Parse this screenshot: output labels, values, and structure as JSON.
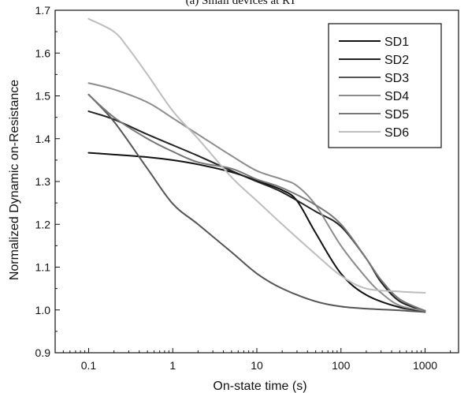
{
  "chart_data": {
    "type": "line",
    "title": "(a)    Small devices at RT",
    "xlabel": "On-state time (s)",
    "ylabel": "Normalized Dynamic on-Resistance",
    "xscale": "log",
    "xlim": [
      0.04,
      2500
    ],
    "ylim": [
      0.9,
      1.7
    ],
    "x_ticks": [
      0.1,
      1,
      10,
      100,
      1000
    ],
    "x_tick_labels": [
      "0.1",
      "1",
      "10",
      "100",
      "1000"
    ],
    "y_ticks": [
      0.9,
      1.0,
      1.1,
      1.2,
      1.3,
      1.4,
      1.5,
      1.6,
      1.7
    ],
    "y_tick_labels": [
      "0.9",
      "1.0",
      "1.1",
      "1.2",
      "1.3",
      "1.4",
      "1.5",
      "1.6",
      "1.7"
    ],
    "grid": false,
    "legend_position": "top-right",
    "series": [
      {
        "name": "SD1",
        "color": "#111111",
        "x": [
          0.1,
          0.2,
          0.5,
          1,
          2,
          5,
          10,
          20,
          30,
          50,
          100,
          200,
          500,
          1000
        ],
        "y": [
          1.367,
          1.363,
          1.357,
          1.35,
          1.34,
          1.322,
          1.302,
          1.28,
          1.255,
          1.18,
          1.085,
          1.035,
          1.006,
          0.998
        ]
      },
      {
        "name": "SD2",
        "color": "#222222",
        "x": [
          0.1,
          0.2,
          0.5,
          1,
          2,
          5,
          10,
          20,
          50,
          100,
          200,
          300,
          500,
          1000
        ],
        "y": [
          1.464,
          1.445,
          1.41,
          1.385,
          1.36,
          1.325,
          1.3,
          1.275,
          1.23,
          1.195,
          1.12,
          1.065,
          1.02,
          0.998
        ]
      },
      {
        "name": "SD3",
        "color": "#555555",
        "x": [
          0.1,
          0.2,
          0.5,
          1,
          2,
          5,
          10,
          20,
          50,
          100,
          200,
          500,
          1000
        ],
        "y": [
          1.503,
          1.44,
          1.33,
          1.248,
          1.2,
          1.135,
          1.085,
          1.05,
          1.02,
          1.008,
          1.003,
          0.999,
          0.995
        ]
      },
      {
        "name": "SD4",
        "color": "#8c8c8c",
        "x": [
          0.1,
          0.2,
          0.5,
          1,
          2,
          5,
          10,
          20,
          30,
          50,
          100,
          200,
          300,
          500,
          1000
        ],
        "y": [
          1.53,
          1.515,
          1.485,
          1.448,
          1.41,
          1.36,
          1.325,
          1.305,
          1.29,
          1.245,
          1.15,
          1.075,
          1.04,
          1.01,
          0.998
        ]
      },
      {
        "name": "SD5",
        "color": "#777777",
        "x": [
          0.1,
          0.2,
          0.5,
          1,
          2,
          5,
          10,
          20,
          50,
          100,
          200,
          300,
          500,
          1000
        ],
        "y": [
          1.503,
          1.45,
          1.4,
          1.37,
          1.345,
          1.33,
          1.305,
          1.285,
          1.245,
          1.2,
          1.12,
          1.07,
          1.025,
          0.998
        ]
      },
      {
        "name": "SD6",
        "color": "#bdbdbd",
        "x": [
          0.1,
          0.2,
          0.3,
          0.5,
          1,
          2,
          5,
          10,
          20,
          50,
          100,
          200,
          500,
          1000
        ],
        "y": [
          1.68,
          1.65,
          1.61,
          1.55,
          1.465,
          1.4,
          1.31,
          1.255,
          1.2,
          1.13,
          1.08,
          1.05,
          1.043,
          1.04
        ]
      }
    ]
  }
}
